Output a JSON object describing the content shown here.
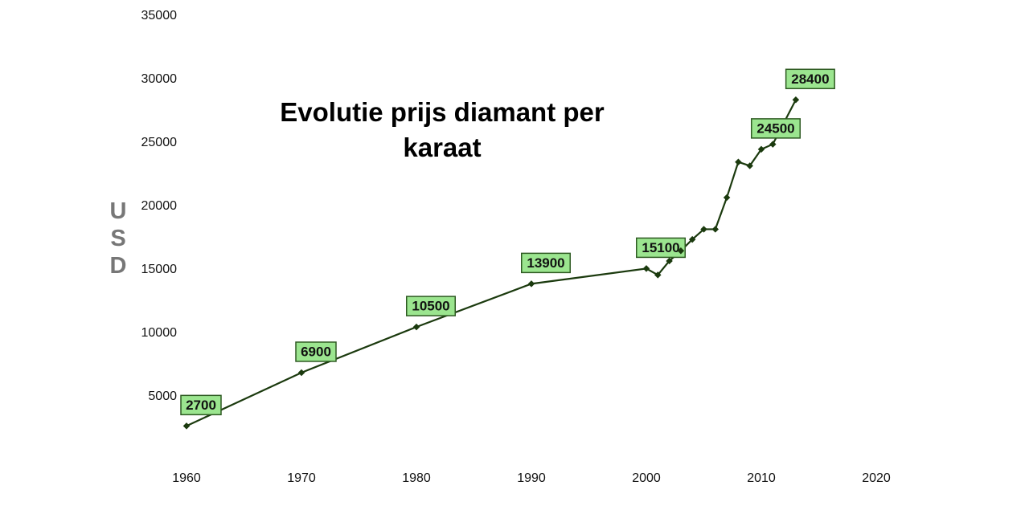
{
  "chart_data": {
    "type": "line",
    "title": "Evolutie prijs diamant per karaat",
    "ylabel": "USD",
    "x": [
      1960,
      1970,
      1980,
      1990,
      2000,
      2001,
      2002,
      2003,
      2004,
      2005,
      2006,
      2007,
      2008,
      2009,
      2010,
      2011,
      2013
    ],
    "series": [
      {
        "name": "USD",
        "color": "#1b3a0e",
        "values": [
          2700,
          6900,
          10500,
          13900,
          15100,
          14600,
          15700,
          16500,
          17400,
          18200,
          18200,
          20700,
          23500,
          23200,
          24500,
          24900,
          28400
        ],
        "value_labels": [
          "2700",
          "6900",
          "10500",
          "13900",
          "15100",
          null,
          null,
          null,
          null,
          null,
          null,
          null,
          null,
          null,
          "24500",
          null,
          "28400"
        ]
      }
    ],
    "xlim": [
      1960,
      2020
    ],
    "xticks": [
      1960,
      1970,
      1980,
      1990,
      2000,
      2010,
      2020
    ],
    "ylim": [
      0,
      35000
    ],
    "yticks": [
      5000,
      10000,
      15000,
      20000,
      25000,
      30000,
      35000
    ],
    "grid": false
  }
}
